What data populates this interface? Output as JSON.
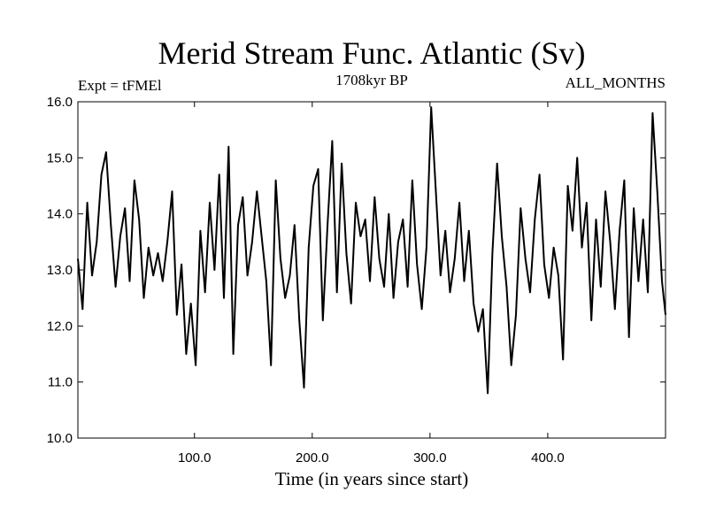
{
  "chart_data": {
    "type": "line",
    "title": "Merid Stream Func. Atlantic (Sv)",
    "subtitle_left": "Expt = tFMEl",
    "subtitle_center": "1708kyr BP",
    "subtitle_right": "ALL_MONTHS",
    "xlabel": "Time (in years since start)",
    "ylabel": "",
    "xlim": [
      1,
      500
    ],
    "ylim": [
      10.0,
      16.0
    ],
    "x_ticks": [
      100,
      200,
      300,
      400
    ],
    "x_tick_labels": [
      "100.0",
      "200.0",
      "300.0",
      "400.0"
    ],
    "y_ticks": [
      10,
      11,
      12,
      13,
      14,
      15,
      16
    ],
    "y_tick_labels": [
      "10.0",
      "11.0",
      "12.0",
      "13.0",
      "14.0",
      "15.0",
      "16.0"
    ],
    "grid": false,
    "line_color": "#000000",
    "series": [
      {
        "name": "Merid Stream Func. Atlantic",
        "x": [
          1,
          5,
          9,
          13,
          17,
          21,
          25,
          29,
          33,
          37,
          41,
          45,
          49,
          53,
          57,
          61,
          65,
          69,
          73,
          77,
          81,
          85,
          89,
          93,
          97,
          101,
          105,
          109,
          113,
          117,
          121,
          125,
          129,
          133,
          137,
          141,
          145,
          149,
          153,
          157,
          161,
          165,
          169,
          173,
          177,
          181,
          185,
          189,
          193,
          197,
          201,
          205,
          209,
          213,
          217,
          221,
          225,
          229,
          233,
          237,
          241,
          245,
          249,
          253,
          257,
          261,
          265,
          269,
          273,
          277,
          281,
          285,
          289,
          293,
          297,
          301,
          305,
          309,
          313,
          317,
          321,
          325,
          329,
          333,
          337,
          341,
          345,
          349,
          353,
          357,
          361,
          365,
          369,
          373,
          377,
          381,
          385,
          389,
          393,
          397,
          401,
          405,
          409,
          413,
          417,
          421,
          425,
          429,
          433,
          437,
          441,
          445,
          449,
          453,
          457,
          461,
          465,
          469,
          473,
          477,
          481,
          485,
          489,
          493,
          497,
          500
        ],
        "values": [
          13.2,
          12.3,
          14.2,
          12.9,
          13.5,
          14.7,
          15.1,
          13.8,
          12.7,
          13.6,
          14.1,
          12.8,
          14.6,
          13.9,
          12.5,
          13.4,
          12.9,
          13.3,
          12.8,
          13.5,
          14.4,
          12.2,
          13.1,
          11.5,
          12.4,
          11.3,
          13.7,
          12.6,
          14.2,
          13.0,
          14.7,
          12.5,
          15.2,
          11.5,
          13.8,
          14.3,
          12.9,
          13.5,
          14.4,
          13.6,
          12.8,
          11.3,
          14.6,
          13.2,
          12.5,
          12.9,
          13.8,
          12.1,
          10.9,
          13.4,
          14.5,
          14.8,
          12.1,
          13.8,
          15.3,
          12.6,
          14.9,
          13.3,
          12.4,
          14.2,
          13.6,
          13.9,
          12.8,
          14.3,
          13.2,
          12.7,
          14.0,
          12.5,
          13.5,
          13.9,
          12.7,
          14.6,
          13.1,
          12.3,
          13.4,
          15.9,
          14.4,
          12.9,
          13.7,
          12.6,
          13.2,
          14.2,
          12.8,
          13.7,
          12.4,
          11.9,
          12.3,
          10.8,
          13.3,
          14.9,
          13.6,
          12.7,
          11.3,
          12.2,
          14.1,
          13.2,
          12.6,
          13.9,
          14.7,
          13.1,
          12.5,
          13.4,
          12.9,
          11.4,
          14.5,
          13.7,
          15.0,
          13.4,
          14.2,
          12.1,
          13.9,
          12.7,
          14.4,
          13.5,
          12.3,
          13.7,
          14.6,
          11.8,
          14.1,
          12.8,
          13.9,
          12.6,
          15.8,
          14.4,
          12.8,
          12.2
        ]
      }
    ]
  }
}
